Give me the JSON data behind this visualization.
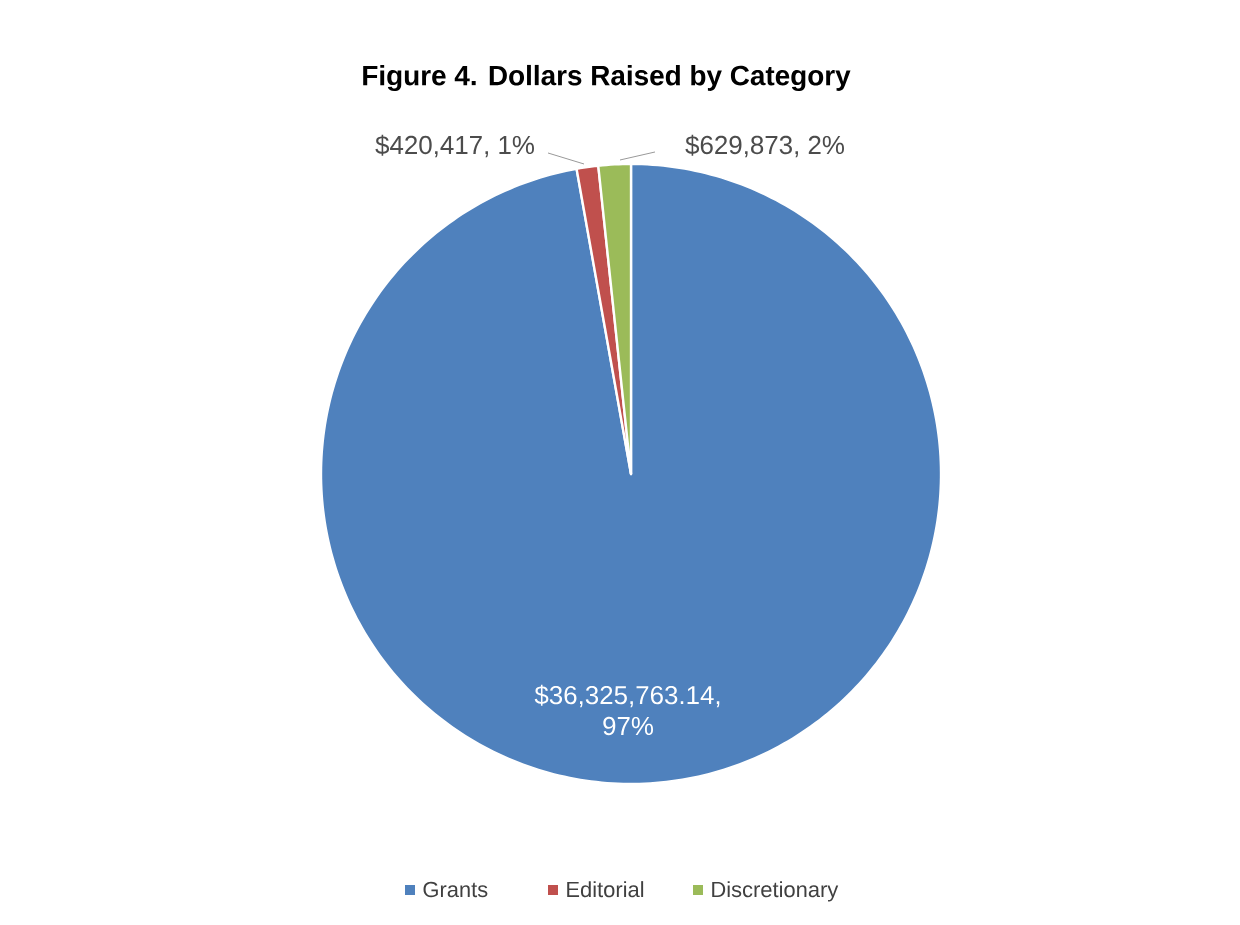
{
  "chart_data": {
    "type": "pie",
    "title": "Figure 4. Dollars Raised by Category",
    "categories": [
      "Grants",
      "Editorial",
      "Discretionary"
    ],
    "values": [
      36325763.14,
      420417,
      629873
    ],
    "colors": [
      "#4f81bd",
      "#c0504d",
      "#9bbb59"
    ],
    "value_labels": [
      "$36,325,763.14, 97%",
      "$420,417, 1%",
      "$629,873, 2%"
    ],
    "legend": "bottom"
  }
}
